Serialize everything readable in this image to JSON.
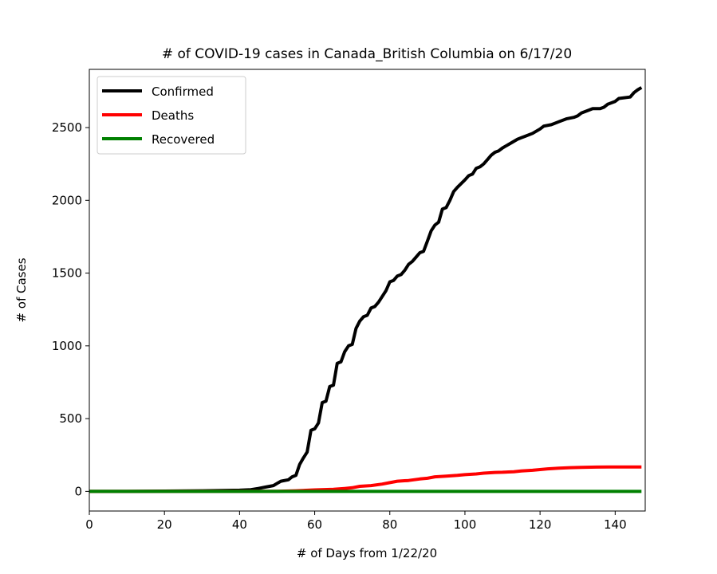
{
  "chart_data": {
    "type": "line",
    "title": "# of COVID-19 cases in Canada_British Columbia on 6/17/20",
    "xlabel": "# of Days from 1/22/20",
    "ylabel": "# of Cases",
    "xlim": [
      0,
      148
    ],
    "ylim": [
      -135,
      2900
    ],
    "xticks": [
      0,
      20,
      40,
      60,
      80,
      100,
      120,
      140
    ],
    "yticks": [
      0,
      500,
      1000,
      1500,
      2000,
      2500
    ],
    "legend_position": "upper-left",
    "grid": false,
    "series": [
      {
        "name": "Confirmed",
        "color": "#000000",
        "points": [
          [
            0,
            0
          ],
          [
            10,
            0
          ],
          [
            20,
            2
          ],
          [
            30,
            4
          ],
          [
            40,
            8
          ],
          [
            43,
            12
          ],
          [
            45,
            20
          ],
          [
            47,
            30
          ],
          [
            49,
            40
          ],
          [
            50,
            55
          ],
          [
            51,
            70
          ],
          [
            53,
            80
          ],
          [
            54,
            100
          ],
          [
            55,
            110
          ],
          [
            56,
            185
          ],
          [
            57,
            230
          ],
          [
            58,
            270
          ],
          [
            59,
            420
          ],
          [
            60,
            430
          ],
          [
            61,
            470
          ],
          [
            62,
            610
          ],
          [
            63,
            620
          ],
          [
            64,
            720
          ],
          [
            65,
            730
          ],
          [
            66,
            880
          ],
          [
            67,
            890
          ],
          [
            68,
            960
          ],
          [
            69,
            1000
          ],
          [
            70,
            1010
          ],
          [
            71,
            1120
          ],
          [
            72,
            1170
          ],
          [
            73,
            1200
          ],
          [
            74,
            1210
          ],
          [
            75,
            1260
          ],
          [
            76,
            1270
          ],
          [
            77,
            1300
          ],
          [
            78,
            1340
          ],
          [
            79,
            1380
          ],
          [
            80,
            1440
          ],
          [
            81,
            1450
          ],
          [
            82,
            1480
          ],
          [
            83,
            1490
          ],
          [
            84,
            1520
          ],
          [
            85,
            1560
          ],
          [
            86,
            1580
          ],
          [
            87,
            1610
          ],
          [
            88,
            1640
          ],
          [
            89,
            1650
          ],
          [
            90,
            1720
          ],
          [
            91,
            1790
          ],
          [
            92,
            1830
          ],
          [
            93,
            1850
          ],
          [
            94,
            1940
          ],
          [
            95,
            1950
          ],
          [
            96,
            2000
          ],
          [
            97,
            2060
          ],
          [
            98,
            2090
          ],
          [
            100,
            2140
          ],
          [
            101,
            2170
          ],
          [
            102,
            2180
          ],
          [
            103,
            2220
          ],
          [
            104,
            2230
          ],
          [
            105,
            2250
          ],
          [
            106,
            2280
          ],
          [
            107,
            2310
          ],
          [
            108,
            2330
          ],
          [
            109,
            2340
          ],
          [
            110,
            2360
          ],
          [
            112,
            2390
          ],
          [
            114,
            2420
          ],
          [
            115,
            2430
          ],
          [
            116,
            2440
          ],
          [
            118,
            2460
          ],
          [
            120,
            2490
          ],
          [
            121,
            2510
          ],
          [
            123,
            2520
          ],
          [
            125,
            2540
          ],
          [
            127,
            2560
          ],
          [
            129,
            2570
          ],
          [
            130,
            2580
          ],
          [
            131,
            2600
          ],
          [
            133,
            2620
          ],
          [
            134,
            2630
          ],
          [
            136,
            2630
          ],
          [
            137,
            2640
          ],
          [
            138,
            2660
          ],
          [
            140,
            2680
          ],
          [
            141,
            2700
          ],
          [
            144,
            2710
          ],
          [
            145,
            2740
          ],
          [
            146,
            2760
          ],
          [
            147,
            2775
          ]
        ]
      },
      {
        "name": "Deaths",
        "color": "#ff0000",
        "points": [
          [
            0,
            0
          ],
          [
            50,
            1
          ],
          [
            55,
            4
          ],
          [
            60,
            10
          ],
          [
            65,
            14
          ],
          [
            68,
            20
          ],
          [
            70,
            25
          ],
          [
            72,
            35
          ],
          [
            75,
            40
          ],
          [
            78,
            50
          ],
          [
            80,
            60
          ],
          [
            82,
            70
          ],
          [
            85,
            75
          ],
          [
            88,
            85
          ],
          [
            90,
            90
          ],
          [
            92,
            100
          ],
          [
            95,
            105
          ],
          [
            98,
            110
          ],
          [
            100,
            115
          ],
          [
            103,
            120
          ],
          [
            105,
            125
          ],
          [
            108,
            130
          ],
          [
            110,
            131
          ],
          [
            113,
            135
          ],
          [
            115,
            140
          ],
          [
            118,
            145
          ],
          [
            120,
            150
          ],
          [
            122,
            155
          ],
          [
            125,
            160
          ],
          [
            128,
            163
          ],
          [
            131,
            165
          ],
          [
            135,
            167
          ],
          [
            140,
            168
          ],
          [
            147,
            168
          ]
        ]
      },
      {
        "name": "Recovered",
        "color": "#008000",
        "points": [
          [
            0,
            0
          ],
          [
            147,
            0
          ]
        ]
      }
    ]
  }
}
